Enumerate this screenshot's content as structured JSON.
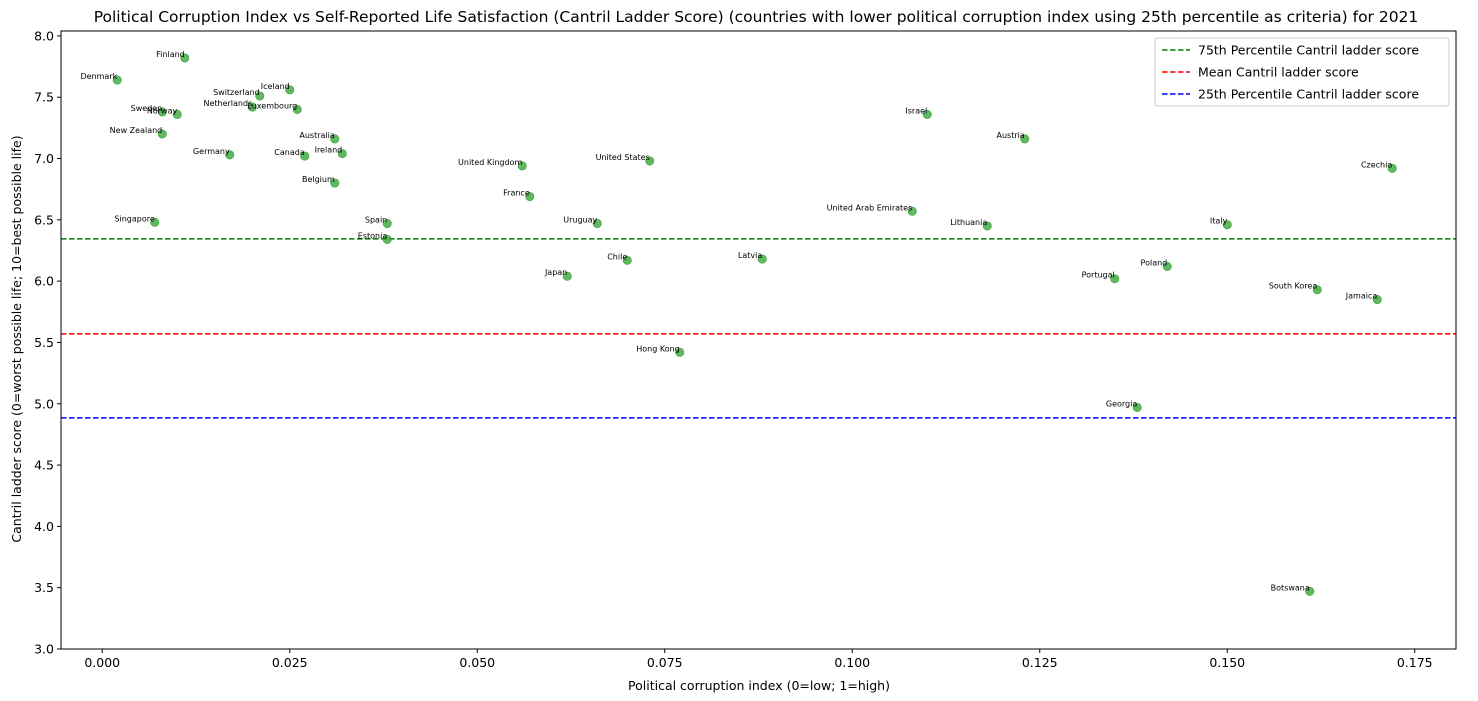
{
  "chart_data": {
    "type": "scatter",
    "title": "Political Corruption Index vs Self-Reported Life Satisfaction (Cantril Ladder Score) (countries with lower political corruption index using 25th percentile as criteria) for 2021",
    "xlabel": "Political corruption index (0=low; 1=high)",
    "ylabel": "Cantril ladder score (0=worst possible life; 10=best possible life)",
    "xlim": [
      -0.0055,
      0.1805
    ],
    "ylim": [
      3.0,
      8.04
    ],
    "xticks": [
      "0.000",
      "0.025",
      "0.050",
      "0.075",
      "0.100",
      "0.125",
      "0.150",
      "0.175"
    ],
    "yticks": [
      "3.0",
      "3.5",
      "4.0",
      "4.5",
      "5.0",
      "5.5",
      "6.0",
      "6.5",
      "7.0",
      "7.5",
      "8.0"
    ],
    "point_color": "#2ca02c",
    "grid": false,
    "legend_position": "top-right",
    "points": [
      {
        "label": "Finland",
        "x": 0.011,
        "y": 7.82
      },
      {
        "label": "Denmark",
        "x": 0.002,
        "y": 7.64
      },
      {
        "label": "Iceland",
        "x": 0.025,
        "y": 7.56
      },
      {
        "label": "Switzerland",
        "x": 0.021,
        "y": 7.51
      },
      {
        "label": "Netherlands",
        "x": 0.02,
        "y": 7.42
      },
      {
        "label": "Luxembourg",
        "x": 0.026,
        "y": 7.4
      },
      {
        "label": "Sweden",
        "x": 0.008,
        "y": 7.38
      },
      {
        "label": "Norway",
        "x": 0.01,
        "y": 7.36
      },
      {
        "label": "Israel",
        "x": 0.11,
        "y": 7.36
      },
      {
        "label": "New Zealand",
        "x": 0.008,
        "y": 7.2
      },
      {
        "label": "Australia",
        "x": 0.031,
        "y": 7.16
      },
      {
        "label": "Austria",
        "x": 0.123,
        "y": 7.16
      },
      {
        "label": "Ireland",
        "x": 0.032,
        "y": 7.04
      },
      {
        "label": "Germany",
        "x": 0.017,
        "y": 7.03
      },
      {
        "label": "Canada",
        "x": 0.027,
        "y": 7.02
      },
      {
        "label": "United States",
        "x": 0.073,
        "y": 6.98
      },
      {
        "label": "United Kingdom",
        "x": 0.056,
        "y": 6.94
      },
      {
        "label": "Czechia",
        "x": 0.172,
        "y": 6.92
      },
      {
        "label": "Belgium",
        "x": 0.031,
        "y": 6.8
      },
      {
        "label": "France",
        "x": 0.057,
        "y": 6.69
      },
      {
        "label": "United Arab Emirates",
        "x": 0.108,
        "y": 6.57
      },
      {
        "label": "Singapore",
        "x": 0.007,
        "y": 6.48
      },
      {
        "label": "Spain",
        "x": 0.038,
        "y": 6.47
      },
      {
        "label": "Uruguay",
        "x": 0.066,
        "y": 6.47
      },
      {
        "label": "Italy",
        "x": 0.15,
        "y": 6.46
      },
      {
        "label": "Lithuania",
        "x": 0.118,
        "y": 6.45
      },
      {
        "label": "Estonia",
        "x": 0.038,
        "y": 6.34
      },
      {
        "label": "Chile",
        "x": 0.07,
        "y": 6.17
      },
      {
        "label": "Latvia",
        "x": 0.088,
        "y": 6.18
      },
      {
        "label": "Poland",
        "x": 0.142,
        "y": 6.12
      },
      {
        "label": "Japan",
        "x": 0.062,
        "y": 6.04
      },
      {
        "label": "Portugal",
        "x": 0.135,
        "y": 6.02
      },
      {
        "label": "South Korea",
        "x": 0.162,
        "y": 5.93
      },
      {
        "label": "Jamaica",
        "x": 0.17,
        "y": 5.85
      },
      {
        "label": "Hong Kong",
        "x": 0.077,
        "y": 5.42
      },
      {
        "label": "Georgia",
        "x": 0.138,
        "y": 4.97
      },
      {
        "label": "Botswana",
        "x": 0.161,
        "y": 3.47
      }
    ],
    "reference_lines": [
      {
        "name": "75th Percentile Cantril ladder score",
        "y": 6.345,
        "color": "#008000"
      },
      {
        "name": "Mean Cantril ladder score",
        "y": 5.57,
        "color": "#ff0000"
      },
      {
        "name": "25th Percentile Cantril ladder score",
        "y": 4.885,
        "color": "#0000ff"
      }
    ]
  }
}
